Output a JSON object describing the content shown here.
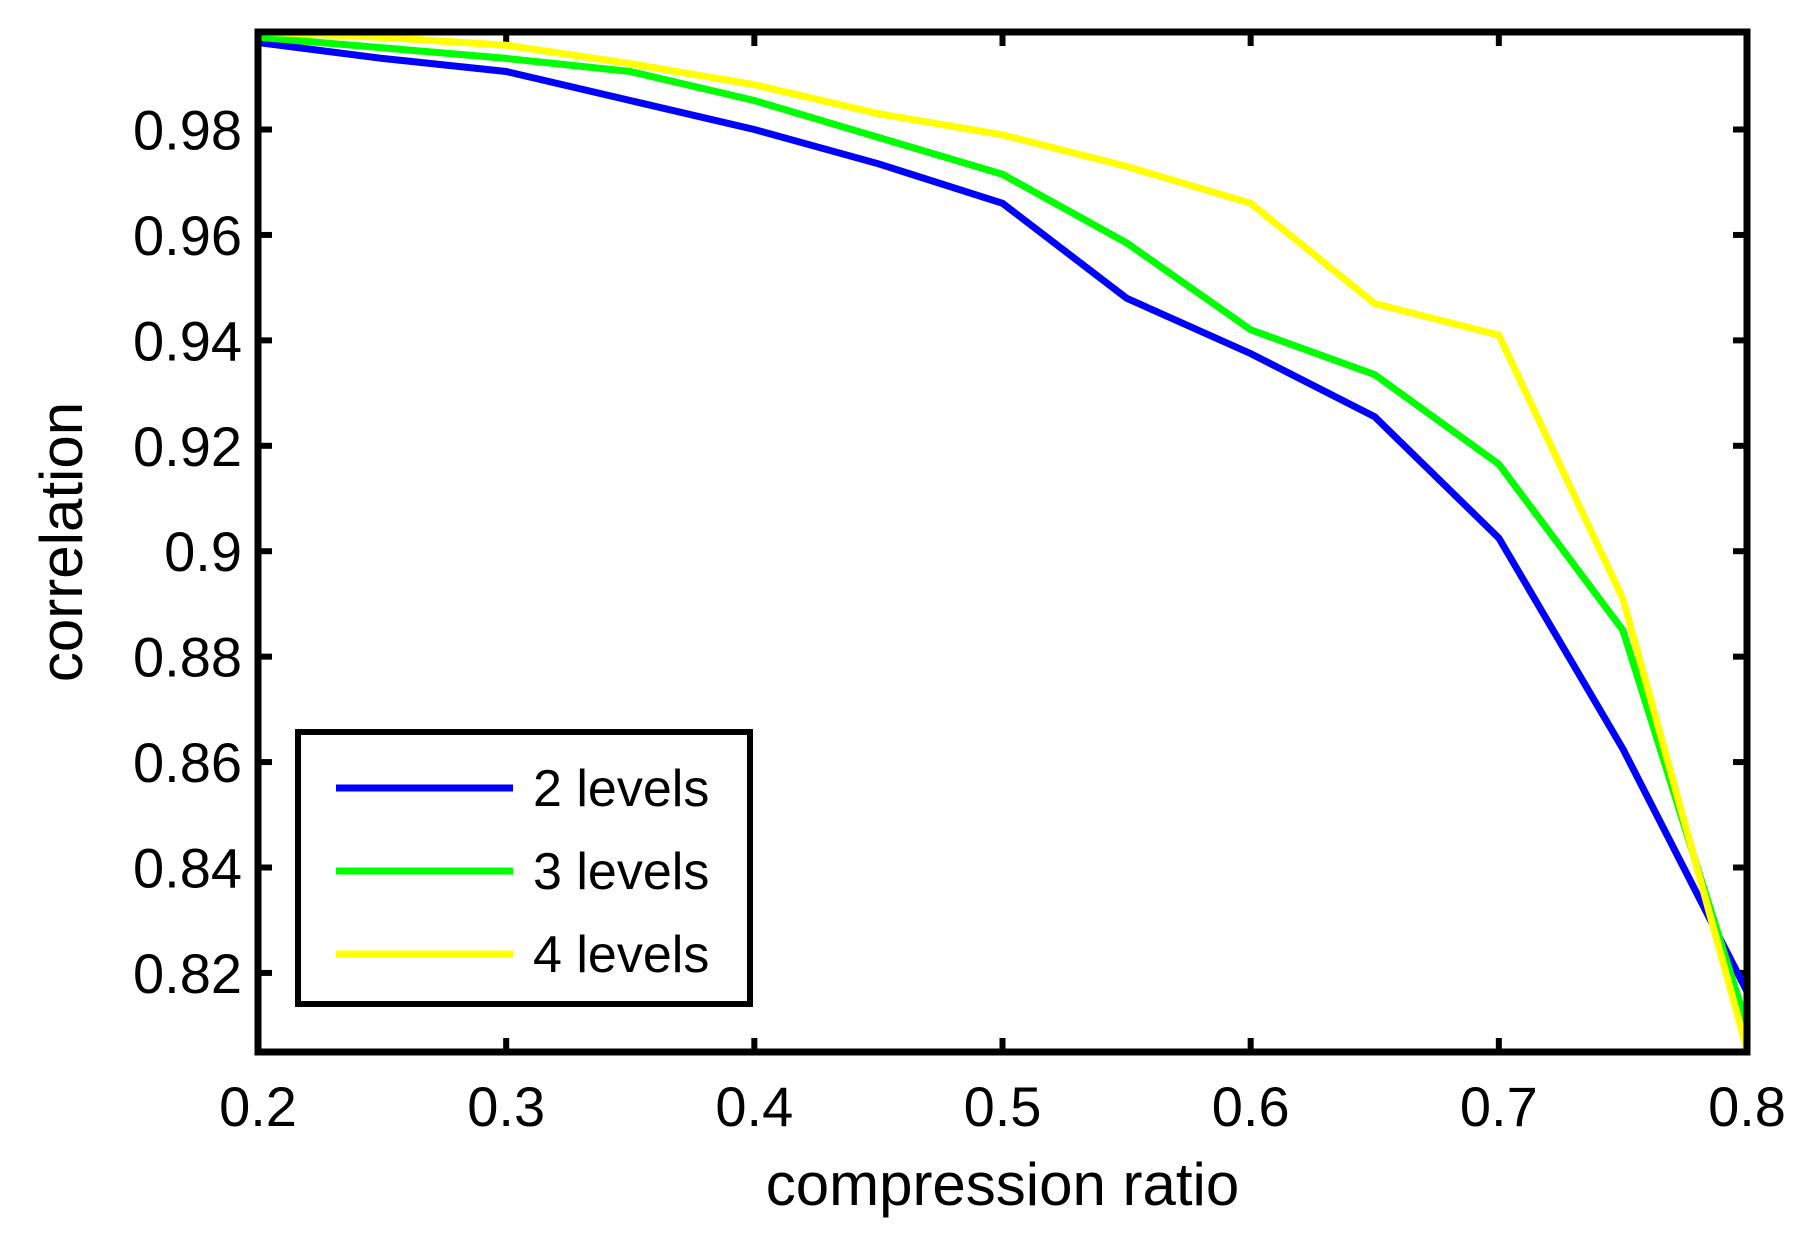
{
  "chart_data": {
    "type": "line",
    "title": "",
    "xlabel": "compression ratio",
    "ylabel": "correlation",
    "xlim": [
      0.2,
      0.8
    ],
    "ylim": [
      0.805,
      0.9985
    ],
    "xticks": [
      0.2,
      0.3,
      0.4,
      0.5,
      0.6,
      0.7,
      0.8
    ],
    "xtick_labels": [
      "0.2",
      "0.3",
      "0.4",
      "0.5",
      "0.6",
      "0.7",
      "0.8"
    ],
    "yticks": [
      0.82,
      0.84,
      0.86,
      0.88,
      0.9,
      0.92,
      0.94,
      0.96,
      0.98
    ],
    "ytick_labels": [
      "0.82",
      "0.84",
      "0.86",
      "0.88",
      "0.9",
      "0.92",
      "0.94",
      "0.96",
      "0.98"
    ],
    "grid": false,
    "legend_position": "bottom-left",
    "x": [
      0.2,
      0.25,
      0.3,
      0.35,
      0.4,
      0.45,
      0.5,
      0.55,
      0.6,
      0.65,
      0.7,
      0.75,
      0.8
    ],
    "series": [
      {
        "name": "2 levels",
        "color": "#0000ff",
        "values": [
          0.9965,
          0.9935,
          0.991,
          0.9855,
          0.98,
          0.9735,
          0.966,
          0.948,
          0.9375,
          0.9255,
          0.9025,
          0.8625,
          0.8165
        ]
      },
      {
        "name": "3 levels",
        "color": "#00ff00",
        "values": [
          0.9975,
          0.9955,
          0.9935,
          0.991,
          0.9855,
          0.9785,
          0.9715,
          0.9585,
          0.942,
          0.9335,
          0.9165,
          0.885,
          0.81
        ]
      },
      {
        "name": "4 levels",
        "color": "#ffff00",
        "values": [
          0.9985,
          0.9975,
          0.996,
          0.9925,
          0.9885,
          0.983,
          0.979,
          0.973,
          0.966,
          0.947,
          0.941,
          0.891,
          0.8055
        ]
      }
    ]
  }
}
